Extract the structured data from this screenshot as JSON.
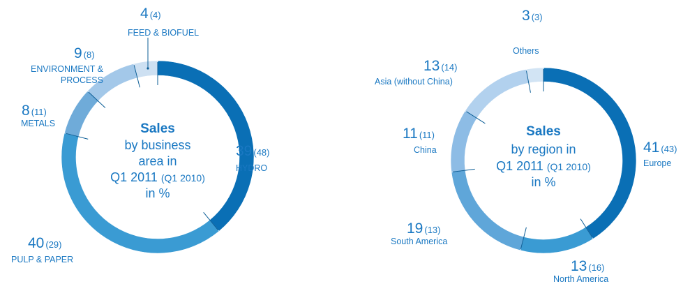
{
  "chart_data": [
    {
      "type": "pie",
      "title": "Sales",
      "center_lines": [
        "by business",
        "area in",
        "Q1 2011",
        "(Q1 2010)",
        "in %"
      ],
      "slices": [
        {
          "label": "HYDRO",
          "value": 39,
          "prev": 48,
          "color": "#0a6fb5"
        },
        {
          "label": "PULP & PAPER",
          "value": 40,
          "prev": 29,
          "color": "#3a9bd3"
        },
        {
          "label": "METALS",
          "value": 8,
          "prev": 11,
          "color": "#6fabd9"
        },
        {
          "label": "ENVIRONMENT & PROCESS",
          "label_lines": [
            "ENVIRONMENT &",
            "PROCESS"
          ],
          "value": 9,
          "prev": 8,
          "color": "#a3c8e9"
        },
        {
          "label": "FEED & BIOFUEL",
          "value": 4,
          "prev": 4,
          "color": "#cde0f2"
        }
      ]
    },
    {
      "type": "pie",
      "title": "Sales",
      "center_lines": [
        "by region in",
        "Q1 2011",
        "(Q1 2010)",
        "in %"
      ],
      "slices": [
        {
          "label": "Europe",
          "value": 41,
          "prev": 43,
          "color": "#0a6fb5"
        },
        {
          "label": "North America",
          "value": 13,
          "prev": 16,
          "color": "#3a9bd3"
        },
        {
          "label": "South America",
          "value": 19,
          "prev": 13,
          "color": "#5fa6d9"
        },
        {
          "label": "China",
          "value": 11,
          "prev": 11,
          "color": "#8dbce5"
        },
        {
          "label": "Asia (without China)",
          "value": 13,
          "prev": 14,
          "color": "#b2d1ee"
        },
        {
          "label": "Others",
          "value": 3,
          "prev": 3,
          "color": "#d2e4f4"
        }
      ]
    }
  ],
  "colors": {
    "text": "#1a78c2",
    "divider": "#0b5d96"
  }
}
